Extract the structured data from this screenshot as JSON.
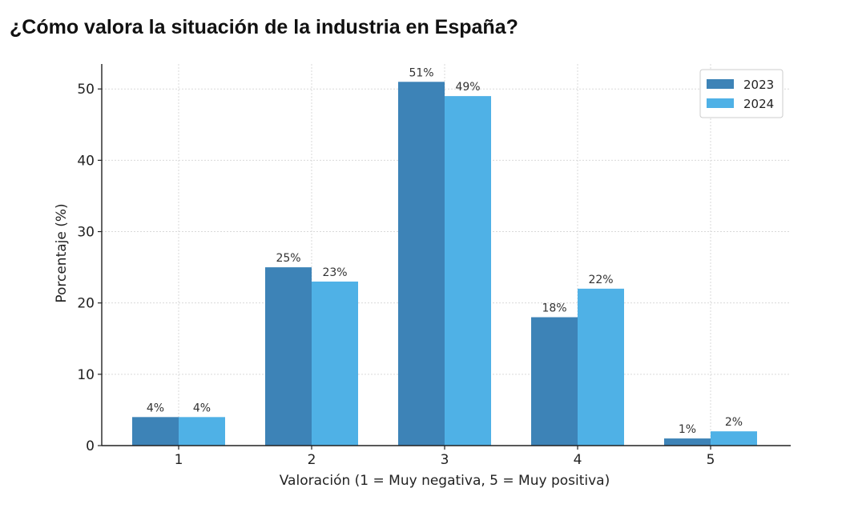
{
  "page": {
    "title": "¿Cómo valora la situación de la industria en España?"
  },
  "chart_data": {
    "type": "bar",
    "categories": [
      "1",
      "2",
      "3",
      "4",
      "5"
    ],
    "series": [
      {
        "name": "2023",
        "color": "#3d83b7",
        "values": [
          4,
          25,
          51,
          18,
          1
        ],
        "labels": [
          "4%",
          "25%",
          "51%",
          "18%",
          "1%"
        ]
      },
      {
        "name": "2024",
        "color": "#4fb1e6",
        "values": [
          4,
          23,
          49,
          22,
          2
        ],
        "labels": [
          "4%",
          "23%",
          "49%",
          "22%",
          "2%"
        ]
      }
    ],
    "xlabel": "Valoración (1 = Muy negativa, 5 = Muy positiva)",
    "ylabel": "Porcentaje (%)",
    "ylim": [
      0,
      53.5
    ],
    "yticks": [
      0,
      10,
      20,
      30,
      40,
      50
    ],
    "grid": true,
    "legend_position": "top-right"
  }
}
